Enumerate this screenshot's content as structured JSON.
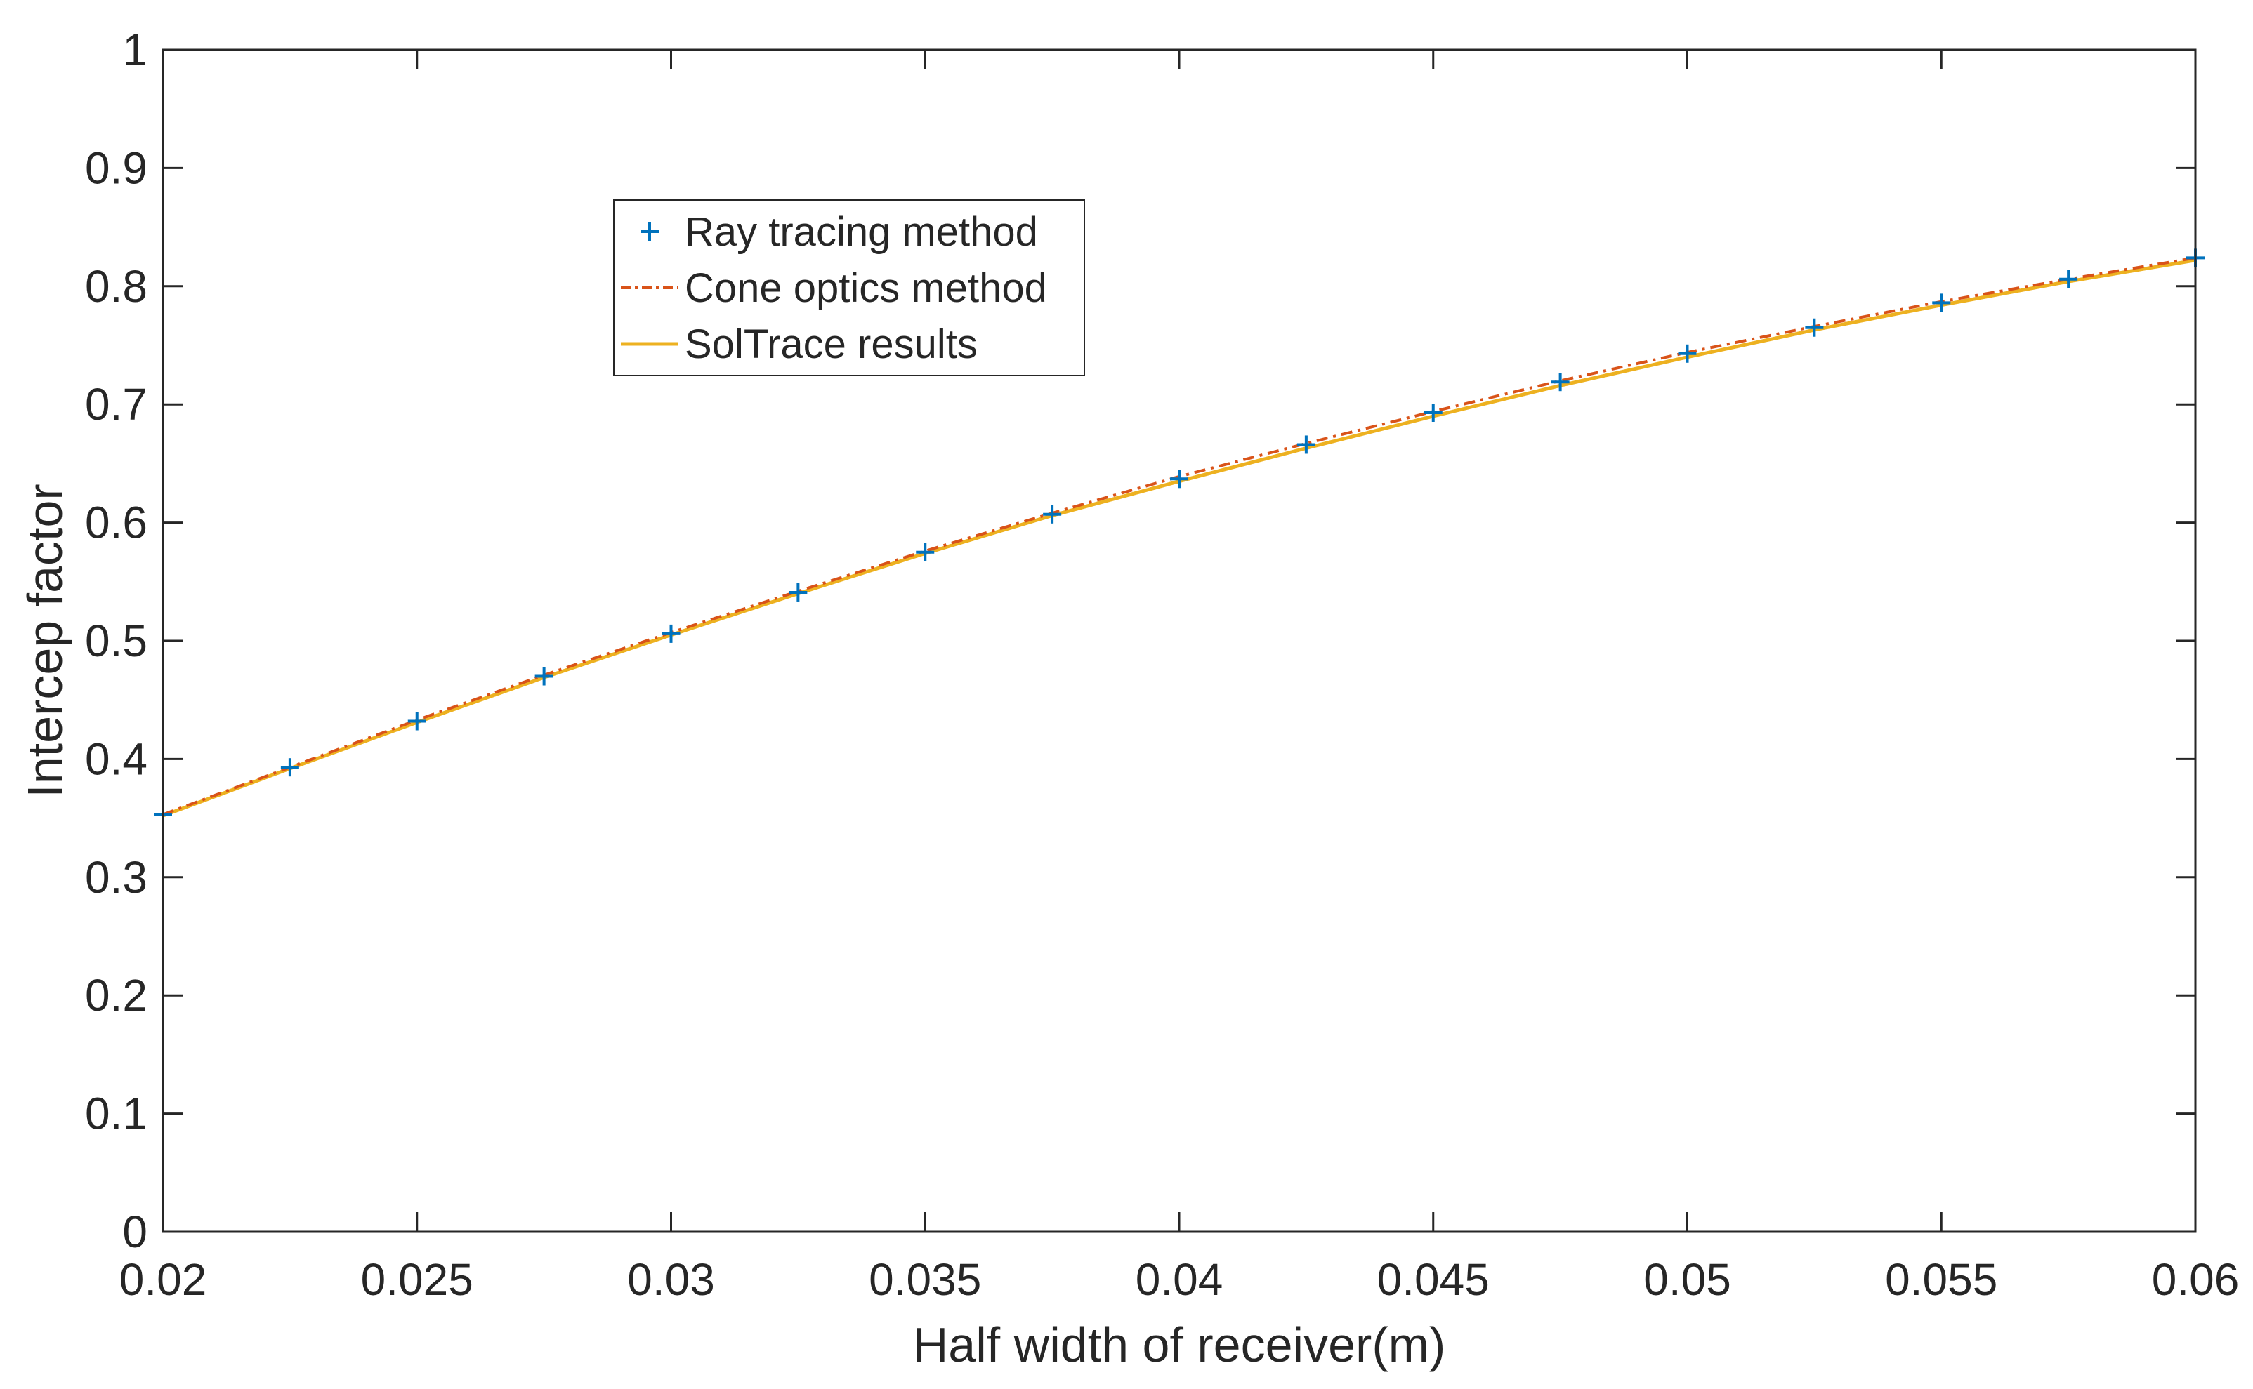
{
  "chart_data": {
    "type": "line",
    "title": "",
    "xlabel": "Half width of receiver(m)",
    "ylabel": "Intercep factor",
    "xlim": [
      0.02,
      0.06
    ],
    "ylim": [
      0,
      1
    ],
    "xticks": [
      "0.02",
      "0.025",
      "0.03",
      "0.035",
      "0.04",
      "0.045",
      "0.05",
      "0.055",
      "0.06"
    ],
    "yticks": [
      "0",
      "0.1",
      "0.2",
      "0.3",
      "0.4",
      "0.5",
      "0.6",
      "0.7",
      "0.8",
      "0.9",
      "1"
    ],
    "grid": false,
    "legend_position": "upper-left-center",
    "x": [
      0.02,
      0.0225,
      0.025,
      0.0275,
      0.03,
      0.0325,
      0.035,
      0.0375,
      0.04,
      0.0425,
      0.045,
      0.0475,
      0.05,
      0.0525,
      0.055,
      0.0575,
      0.06
    ],
    "series": [
      {
        "name": "Ray tracing method",
        "style": "markers-plus",
        "color": "#0072BD",
        "values": [
          0.353,
          0.393,
          0.432,
          0.47,
          0.506,
          0.541,
          0.575,
          0.607,
          0.637,
          0.666,
          0.693,
          0.719,
          0.743,
          0.765,
          0.786,
          0.806,
          0.824
        ]
      },
      {
        "name": "Cone optics method",
        "style": "dash-dot",
        "color": "#D95319",
        "values": [
          0.353,
          0.393,
          0.433,
          0.471,
          0.507,
          0.542,
          0.576,
          0.608,
          0.639,
          0.667,
          0.694,
          0.72,
          0.744,
          0.766,
          0.787,
          0.806,
          0.824
        ]
      },
      {
        "name": "SolTrace results",
        "style": "solid",
        "color": "#EDB120",
        "values": [
          0.352,
          0.392,
          0.431,
          0.469,
          0.505,
          0.54,
          0.574,
          0.606,
          0.635,
          0.663,
          0.69,
          0.716,
          0.74,
          0.763,
          0.784,
          0.804,
          0.822
        ]
      }
    ]
  }
}
